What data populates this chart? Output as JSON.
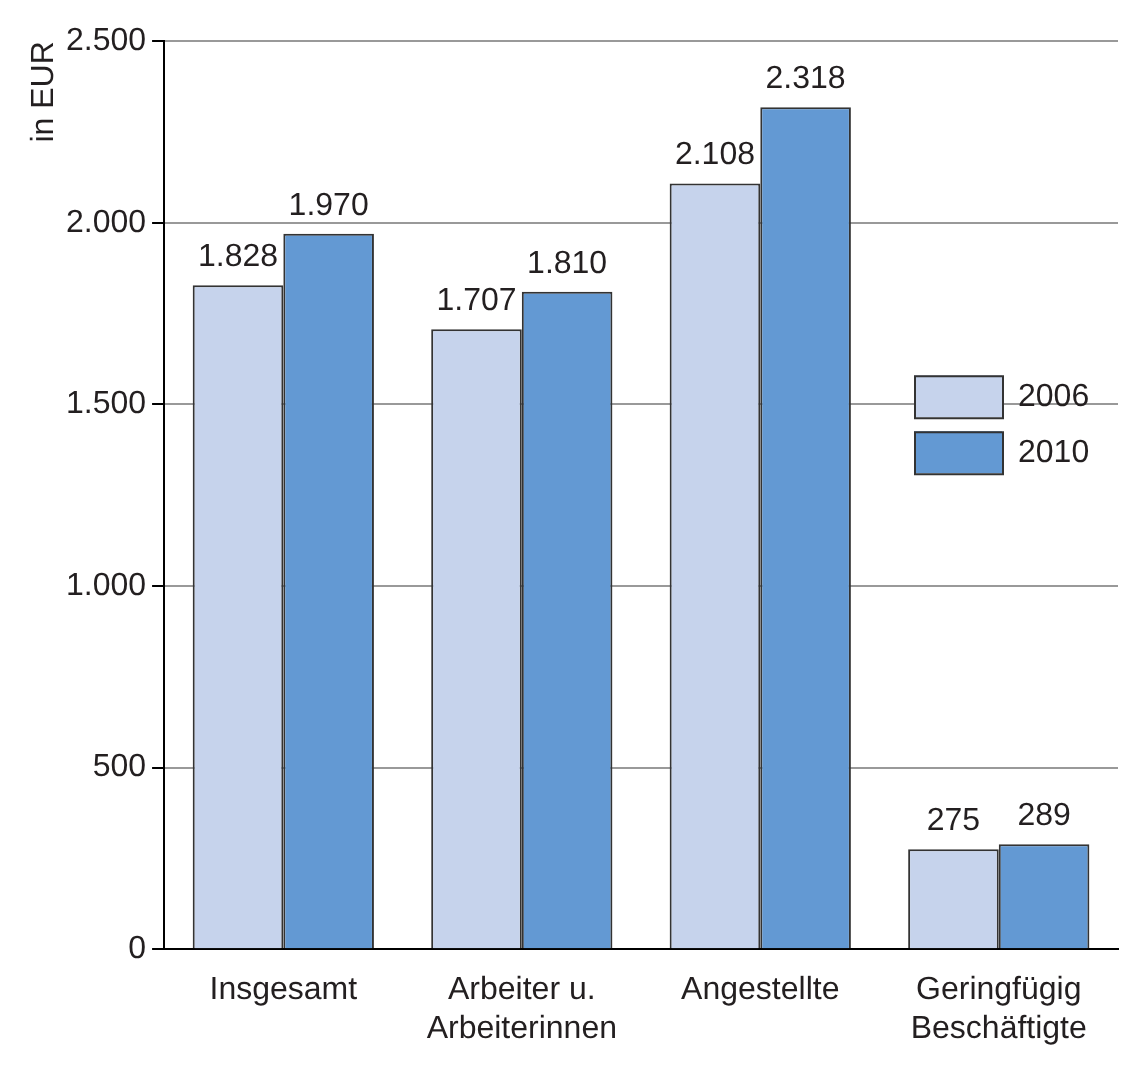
{
  "chart_data": {
    "type": "bar",
    "ylabel": "in EUR",
    "categories": [
      "Insgesamt",
      "Arbeiter u. Arbeiterinnen",
      "Angestellte",
      "Geringfügig Beschäftigte"
    ],
    "series": [
      {
        "name": "2006",
        "color": "#c6d3ec",
        "values": [
          1828,
          1707,
          2108,
          275
        ],
        "value_labels": [
          "1.828",
          "1.707",
          "2.108",
          "275"
        ]
      },
      {
        "name": "2010",
        "color": "#6399d3",
        "values": [
          1970,
          1810,
          2318,
          289
        ],
        "value_labels": [
          "1.970",
          "1.810",
          "2.318",
          "289"
        ]
      }
    ],
    "ylim": [
      0,
      2500
    ],
    "yticks": [
      {
        "value": 0,
        "label": "0"
      },
      {
        "value": 500,
        "label": "500"
      },
      {
        "value": 1000,
        "label": "1.000"
      },
      {
        "value": 1500,
        "label": "1.500"
      },
      {
        "value": 2000,
        "label": "2.000"
      },
      {
        "value": 2500,
        "label": "2.500"
      }
    ],
    "grid": "y",
    "legend": "right"
  }
}
